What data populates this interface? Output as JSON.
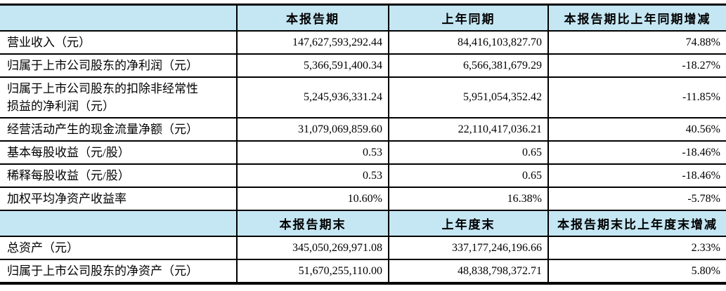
{
  "colors": {
    "header_bg": "#c5e6f3",
    "border": "#000000",
    "text": "#000000"
  },
  "table": {
    "sections": [
      {
        "header": [
          "",
          "本报告期",
          "上年同期",
          "本报告期比上年同期增减"
        ],
        "rows": [
          [
            "营业收入（元）",
            "147,627,593,292.44",
            "84,416,103,827.70",
            "74.88%"
          ],
          [
            "归属于上市公司股东的净利润（元）",
            "5,366,591,400.34",
            "6,566,381,679.29",
            "-18.27%"
          ],
          [
            "归属于上市公司股东的扣除非经常性\n损益的净利润（元）",
            "5,245,936,331.24",
            "5,951,054,352.42",
            "-11.85%"
          ],
          [
            "经营活动产生的现金流量净额（元）",
            "31,079,069,859.60",
            "22,110,417,036.21",
            "40.56%"
          ],
          [
            "基本每股收益（元/股）",
            "0.53",
            "0.65",
            "-18.46%"
          ],
          [
            "稀释每股收益（元/股）",
            "0.53",
            "0.65",
            "-18.46%"
          ],
          [
            "加权平均净资产收益率",
            "10.60%",
            "16.38%",
            "-5.78%"
          ]
        ]
      },
      {
        "header": [
          "",
          "本报告期末",
          "上年度末",
          "本报告期末比上年度末增减"
        ],
        "rows": [
          [
            "总资产（元）",
            "345,050,269,971.08",
            "337,177,246,196.66",
            "2.33%"
          ],
          [
            "归属于上市公司股东的净资产（元）",
            "51,670,255,110.00",
            "48,838,798,372.71",
            "5.80%"
          ]
        ]
      }
    ]
  }
}
